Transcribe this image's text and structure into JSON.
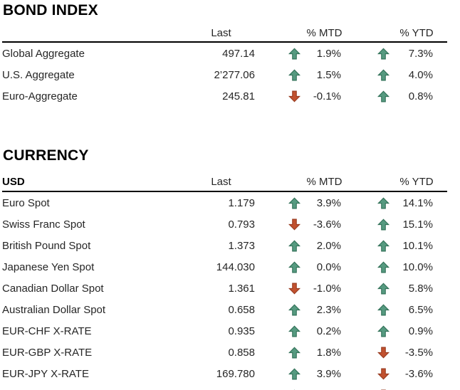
{
  "colors": {
    "up_fill": "#569A80",
    "up_stroke": "#2F6E55",
    "down_fill": "#C1512F",
    "down_stroke": "#963A1F",
    "header_rule": "#000000",
    "title_text": "#000000",
    "body_text": "#262626"
  },
  "bond": {
    "title": "BOND INDEX",
    "columns": {
      "label": "",
      "last": "Last",
      "mtd": "% MTD",
      "ytd": "% YTD"
    },
    "rows": [
      {
        "label": "Global Aggregate",
        "last": "497.14",
        "mtd": "1.9%",
        "mtd_dir": "up",
        "ytd": "7.3%",
        "ytd_dir": "up"
      },
      {
        "label": "U.S. Aggregate",
        "last": "2’277.06",
        "mtd": "1.5%",
        "mtd_dir": "up",
        "ytd": "4.0%",
        "ytd_dir": "up"
      },
      {
        "label": "Euro-Aggregate",
        "last": "245.81",
        "mtd": "-0.1%",
        "mtd_dir": "down",
        "ytd": "0.8%",
        "ytd_dir": "up"
      }
    ]
  },
  "currency": {
    "title": "CURRENCY",
    "columns": {
      "label": "USD",
      "last": "Last",
      "mtd": "% MTD",
      "ytd": "% YTD"
    },
    "rows": [
      {
        "label": "Euro Spot",
        "last": "1.179",
        "mtd": "3.9%",
        "mtd_dir": "up",
        "ytd": "14.1%",
        "ytd_dir": "up"
      },
      {
        "label": "Swiss Franc Spot",
        "last": "0.793",
        "mtd": "-3.6%",
        "mtd_dir": "down",
        "ytd": "15.1%",
        "ytd_dir": "up"
      },
      {
        "label": "British Pound Spot",
        "last": "1.373",
        "mtd": "2.0%",
        "mtd_dir": "up",
        "ytd": "10.1%",
        "ytd_dir": "up"
      },
      {
        "label": "Japanese Yen Spot",
        "last": "144.030",
        "mtd": "0.0%",
        "mtd_dir": "up",
        "ytd": "10.0%",
        "ytd_dir": "up"
      },
      {
        "label": "Canadian Dollar Spot",
        "last": "1.361",
        "mtd": "-1.0%",
        "mtd_dir": "down",
        "ytd": "5.8%",
        "ytd_dir": "up"
      },
      {
        "label": "Australian Dollar Spot",
        "last": "0.658",
        "mtd": "2.3%",
        "mtd_dir": "up",
        "ytd": "6.5%",
        "ytd_dir": "up"
      },
      {
        "label": "EUR-CHF X-RATE",
        "last": "0.935",
        "mtd": "0.2%",
        "mtd_dir": "up",
        "ytd": "0.9%",
        "ytd_dir": "up"
      },
      {
        "label": "EUR-GBP X-RATE",
        "last": "0.858",
        "mtd": "1.8%",
        "mtd_dir": "up",
        "ytd": "-3.5%",
        "ytd_dir": "down"
      },
      {
        "label": "EUR-JPY X-RATE",
        "last": "169.780",
        "mtd": "3.9%",
        "mtd_dir": "up",
        "ytd": "-3.6%",
        "ytd_dir": "down"
      }
    ],
    "clipped_rows": [
      {
        "label": "",
        "last": "",
        "mtd": "",
        "mtd_dir": "up",
        "ytd": "",
        "ytd_dir": "down"
      }
    ]
  }
}
